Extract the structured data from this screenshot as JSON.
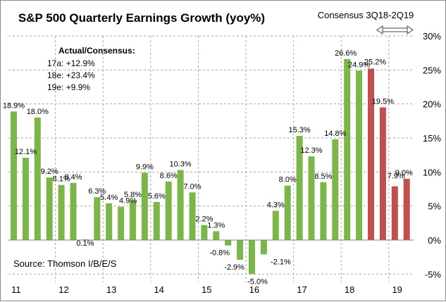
{
  "chart_data": {
    "type": "bar",
    "title": "S&P 500 Quarterly Earnings Growth (yoy%)",
    "consensus_label": "Consensus 3Q18-2Q19",
    "annotation": {
      "heading": "Actual/Consensus:",
      "lines": [
        "17a:  +12.9%",
        "18e:  +23.4%",
        "19e:  +9.9%"
      ]
    },
    "source": "Source:  Thomson I/B/E/S",
    "ylim": [
      -5,
      30
    ],
    "yticks": [
      "-5%",
      "0%",
      "5%",
      "10%",
      "15%",
      "20%",
      "25%",
      "30%"
    ],
    "ytick_values": [
      -5,
      0,
      5,
      10,
      15,
      20,
      25,
      30
    ],
    "year_labels": [
      "11",
      "12",
      "13",
      "14",
      "15",
      "16",
      "17",
      "18",
      "19"
    ],
    "grid": true,
    "colors": {
      "actual": "#7ab648",
      "consensus": "#c0504d",
      "grid": "#a6a6a6"
    },
    "series": [
      {
        "values": [
          18.9,
          12.1,
          18.0,
          9.2,
          8.1,
          8.4,
          0.1,
          6.3,
          5.4,
          4.9,
          5.8,
          9.9,
          5.6,
          8.6,
          10.3,
          7.0,
          2.2,
          1.3,
          -0.8,
          -2.9,
          -5.0,
          -2.1,
          4.3,
          8.0,
          15.3,
          12.3,
          8.5,
          14.8,
          26.6,
          24.9,
          25.2,
          19.5,
          7.9,
          9.0
        ],
        "labels": [
          "18.9%",
          "12.1%",
          "18.0%",
          "9.2%",
          "8.1%",
          "8.4%",
          "0.1%",
          "6.3%",
          "5.4%",
          "4.9%",
          "5.8%",
          "9.9%",
          "5.6%",
          "8.6%",
          "10.3%",
          "7.0%",
          "2.2%",
          "1.3%",
          "-0.8%",
          "-2.9%",
          "-5.0%",
          "-2.1%",
          "4.3%",
          "8.0%",
          "15.3%",
          "12.3%",
          "8.5%",
          "14.8%",
          "26.6%",
          "24.9%",
          "25.2%",
          "19.5%",
          "7.9%",
          "9.0%"
        ],
        "consensus_from_index": 30
      }
    ]
  }
}
